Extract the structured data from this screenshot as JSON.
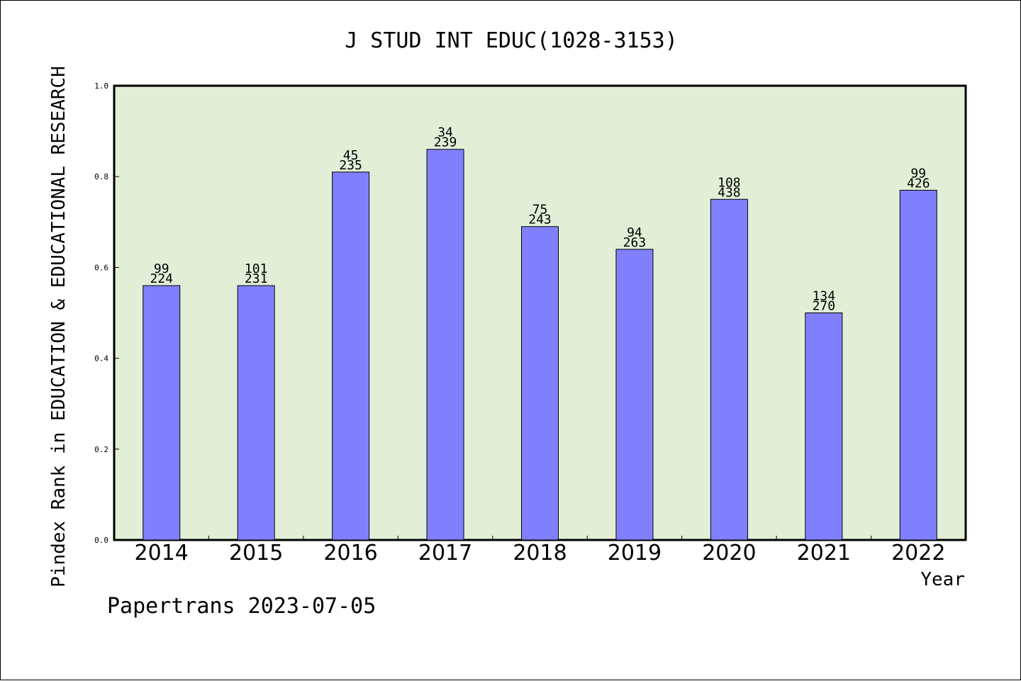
{
  "chart_data": {
    "type": "bar",
    "title": "J STUD INT EDUC(1028-3153)",
    "xlabel": "Year",
    "ylabel": "Pindex Rank in EDUCATION & EDUCATIONAL RESEARCH",
    "footer": "Papertrans 2023-07-05",
    "ylim": [
      0,
      1.0
    ],
    "yticks": [
      "0.0",
      "0.2",
      "0.4",
      "0.6",
      "0.8",
      "1.0"
    ],
    "grid": false,
    "legend": "none",
    "categories": [
      "2014",
      "2015",
      "2016",
      "2017",
      "2018",
      "2019",
      "2020",
      "2021",
      "2022"
    ],
    "values": [
      0.56,
      0.56,
      0.81,
      0.86,
      0.69,
      0.64,
      0.75,
      0.5,
      0.77
    ],
    "rank_labels": [
      "99",
      "101",
      "45",
      "34",
      "75",
      "94",
      "108",
      "134",
      "99"
    ],
    "total_labels": [
      "224",
      "231",
      "235",
      "239",
      "243",
      "263",
      "438",
      "270",
      "426"
    ],
    "colors": {
      "bar": "#8080ff",
      "plot_background": "#e2efd6",
      "axis": "#000000"
    }
  }
}
